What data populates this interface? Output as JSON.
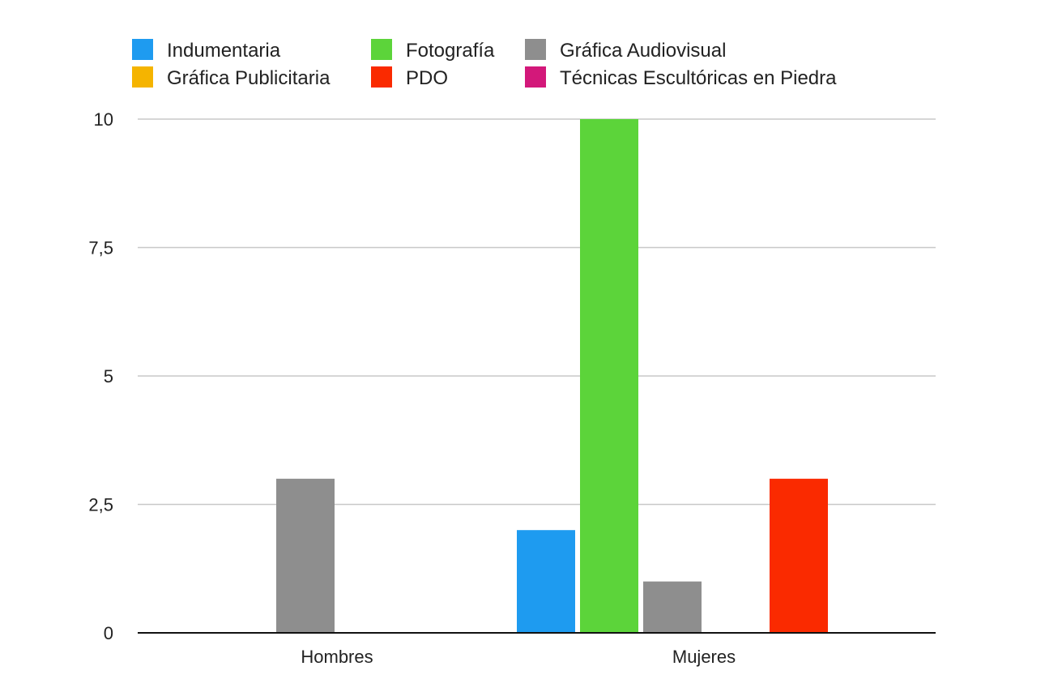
{
  "chart_data": {
    "type": "bar",
    "categories": [
      "Hombres",
      "Mujeres"
    ],
    "series": [
      {
        "name": "Indumentaria",
        "color": "#1E9BF0",
        "values": [
          0,
          2
        ]
      },
      {
        "name": "Fotografía",
        "color": "#5CD43A",
        "values": [
          0,
          10
        ]
      },
      {
        "name": "Gráfica Audiovisual",
        "color": "#8E8E8E",
        "values": [
          3,
          1
        ]
      },
      {
        "name": "Gráfica Publicitaria",
        "color": "#F5B400",
        "values": [
          0,
          0
        ]
      },
      {
        "name": "PDO",
        "color": "#FA2A00",
        "values": [
          0,
          3
        ]
      },
      {
        "name": "Técnicas Escultóricas en Piedra",
        "color": "#D3187A",
        "values": [
          0,
          0
        ]
      }
    ],
    "yticks": [
      "0",
      "2,5",
      "5",
      "7,5",
      "10"
    ],
    "ytick_values": [
      0,
      2.5,
      5,
      7.5,
      10
    ],
    "ylim": [
      0,
      10
    ],
    "grid": true,
    "legend_position": "top",
    "title": "",
    "xlabel": "",
    "ylabel": ""
  }
}
